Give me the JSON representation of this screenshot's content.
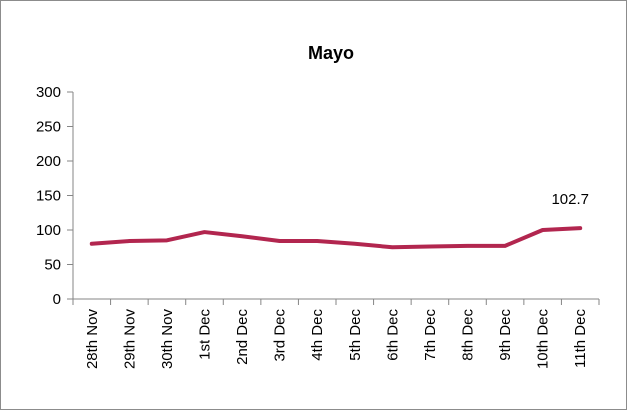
{
  "chart_data": {
    "type": "line",
    "title": "Mayo",
    "xlabel": "",
    "ylabel": "",
    "categories": [
      "28th Nov",
      "29th Nov",
      "30th Nov",
      "1st Dec",
      "2nd Dec",
      "3rd Dec",
      "4th Dec",
      "5th Dec",
      "6th Dec",
      "7th Dec",
      "8th Dec",
      "9th Dec",
      "10th Dec",
      "11th Dec"
    ],
    "series": [
      {
        "values": [
          80,
          84,
          85,
          97,
          91,
          84,
          84,
          80,
          75,
          76,
          77,
          77,
          100,
          102.7
        ],
        "color": "#b2264f"
      }
    ],
    "yticks": [
      "0",
      "50",
      "100",
      "150",
      "200",
      "250",
      "300"
    ],
    "ylim": [
      0,
      300
    ],
    "grid": false,
    "legend": "none",
    "data_labels": [
      {
        "index": 13,
        "text": "102.7"
      }
    ]
  }
}
